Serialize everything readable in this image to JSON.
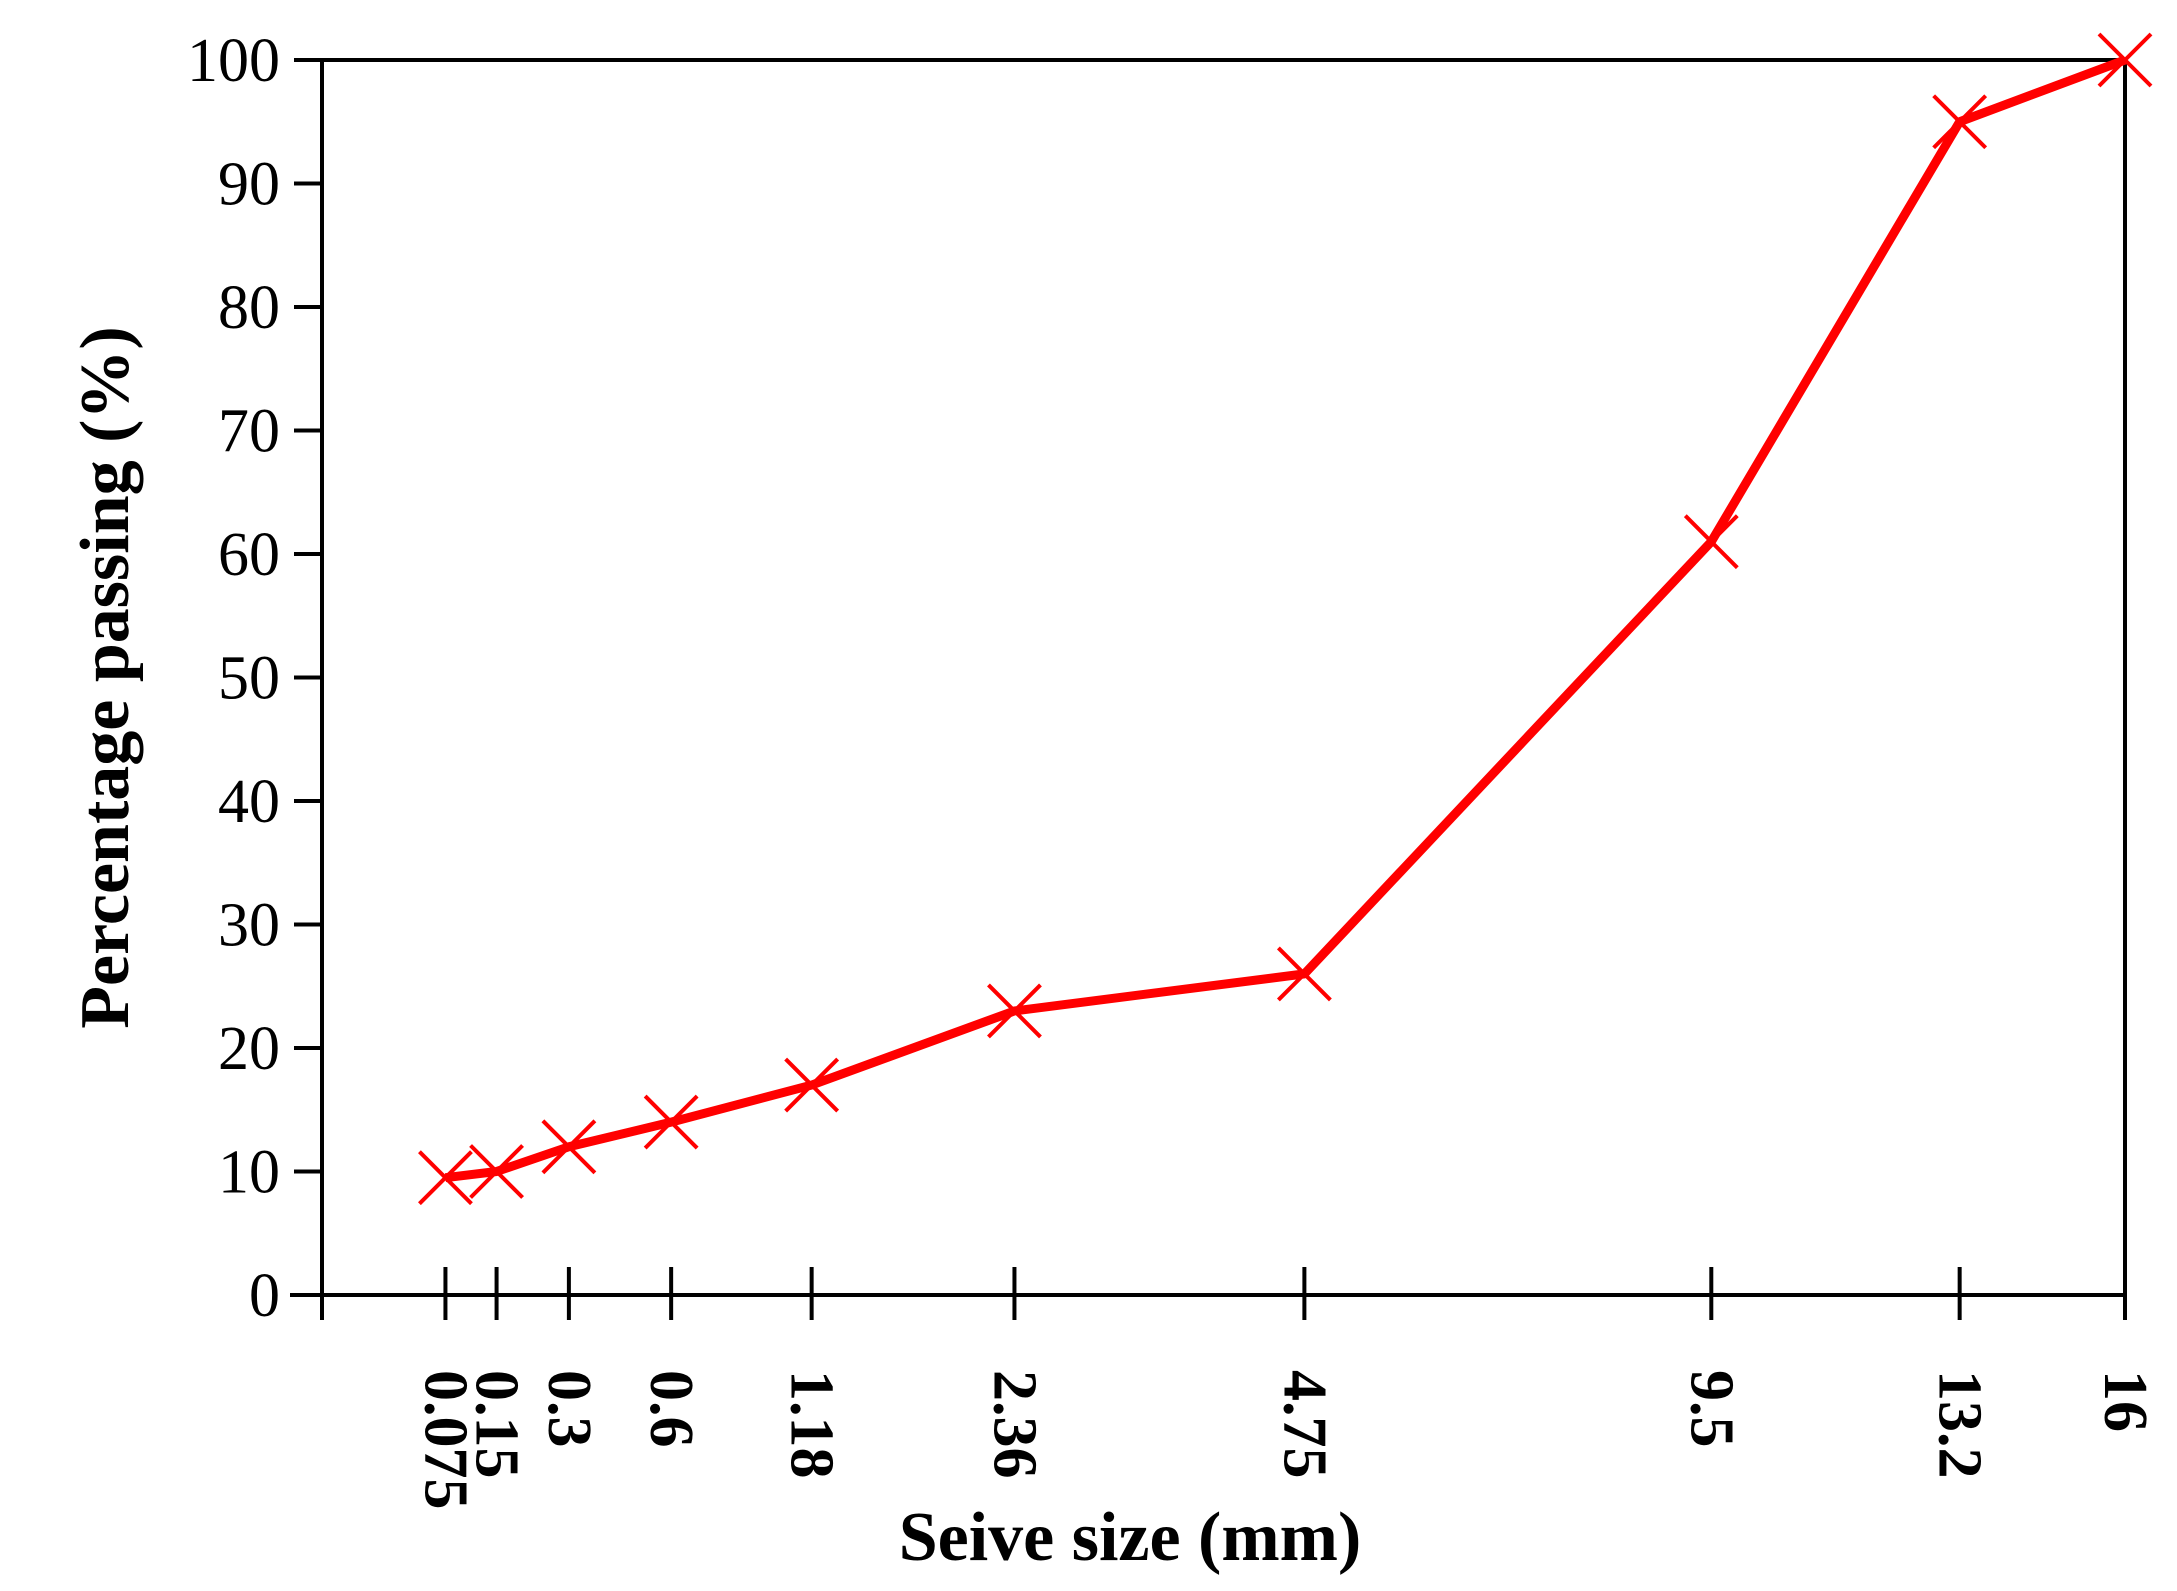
{
  "chart_data": {
    "type": "line",
    "title": "",
    "xlabel": "Seive size (mm)",
    "ylabel": "Percentage passing (%)",
    "x_scale": "sqrt",
    "xlim": [
      0,
      16
    ],
    "ylim": [
      0,
      100
    ],
    "y_ticks": [
      0,
      10,
      20,
      30,
      40,
      50,
      60,
      70,
      80,
      90,
      100
    ],
    "x_tick_labels": [
      "0.075",
      "0.15",
      "0.3",
      "0.6",
      "1.18",
      "2.36",
      "4.75",
      "9.5",
      "13.2",
      "16"
    ],
    "x": [
      0.075,
      0.15,
      0.3,
      0.6,
      1.18,
      2.36,
      4.75,
      9.5,
      13.2,
      16
    ],
    "series": [
      {
        "values": [
          9.5,
          10,
          12,
          14,
          17,
          23,
          26,
          61,
          95,
          100
        ],
        "color": "#ff0000",
        "marker": "x"
      }
    ],
    "grid": false,
    "legend": "none"
  }
}
